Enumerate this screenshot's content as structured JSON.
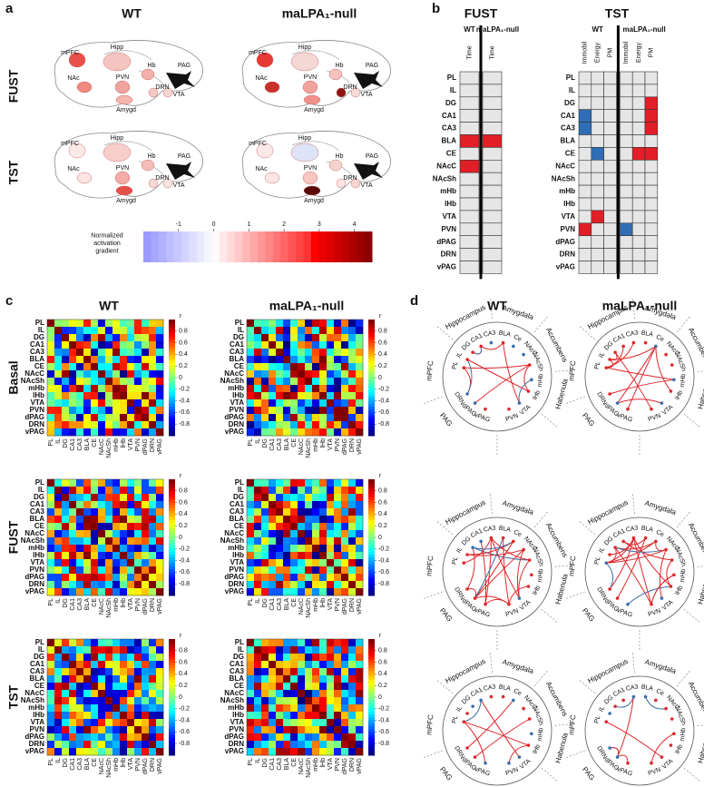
{
  "panel_a": {
    "label": "a",
    "columns": [
      "WT",
      "maLPA₁-null"
    ],
    "rows": [
      "FUST",
      "TST"
    ],
    "regions": [
      "mPFC",
      "Hipp",
      "Hb",
      "PAG",
      "NAc",
      "PVN",
      "DRN",
      "VTA",
      "Amygd"
    ],
    "colorbar": {
      "title": "Normalized activation gradient",
      "ticks": [
        -1,
        0,
        1,
        2,
        3,
        4
      ]
    }
  },
  "panel_b": {
    "label": "b",
    "fust": {
      "title": "FUST",
      "groups": [
        "WT",
        "maLPA₁-null"
      ],
      "columns": [
        "Time",
        "Time"
      ]
    },
    "tst": {
      "title": "TST",
      "groups": [
        "WT",
        "maLPA₁-null"
      ],
      "columns": [
        "Immobil",
        "Energy",
        "PM",
        "Immobil",
        "Energy",
        "PM"
      ]
    },
    "rows": [
      "PL",
      "IL",
      "DG",
      "CA1",
      "CA3",
      "BLA",
      "CE",
      "NAcC",
      "NAcSh",
      "mHb",
      "lHb",
      "VTA",
      "PVN",
      "dPAG",
      "DRN",
      "vPAG"
    ]
  },
  "panel_c": {
    "label": "c",
    "columns": [
      "WT",
      "maLPA₁-null"
    ],
    "rows": [
      "Basal",
      "FUST",
      "TST"
    ],
    "regions": [
      "PL",
      "IL",
      "DG",
      "CA1",
      "CA3",
      "BLA",
      "CE",
      "NAcC",
      "NAcSh",
      "mHb",
      "lHb",
      "VTA",
      "PVN",
      "dPAG",
      "DRN",
      "vPAG"
    ],
    "colorbar": {
      "title": "r",
      "ticks": [
        0.8,
        0.6,
        0.4,
        0.2,
        0,
        -0.2,
        -0.4,
        -0.6,
        -0.8
      ]
    }
  },
  "panel_d": {
    "label": "d",
    "columns": [
      "WT",
      "maLPA₁-null"
    ],
    "areas": [
      "Hippocampus",
      "Amygdala",
      "Accumbens",
      "Habenula",
      "PAG",
      "mPFC"
    ],
    "nodes": [
      "PL",
      "IL",
      "DG",
      "CA1",
      "CA3",
      "BLA",
      "Ce",
      "NAcC",
      "NAcSh",
      "mHb",
      "lHb",
      "VTA",
      "PVN",
      "vPAG",
      "dPAG",
      "DRN"
    ]
  }
}
